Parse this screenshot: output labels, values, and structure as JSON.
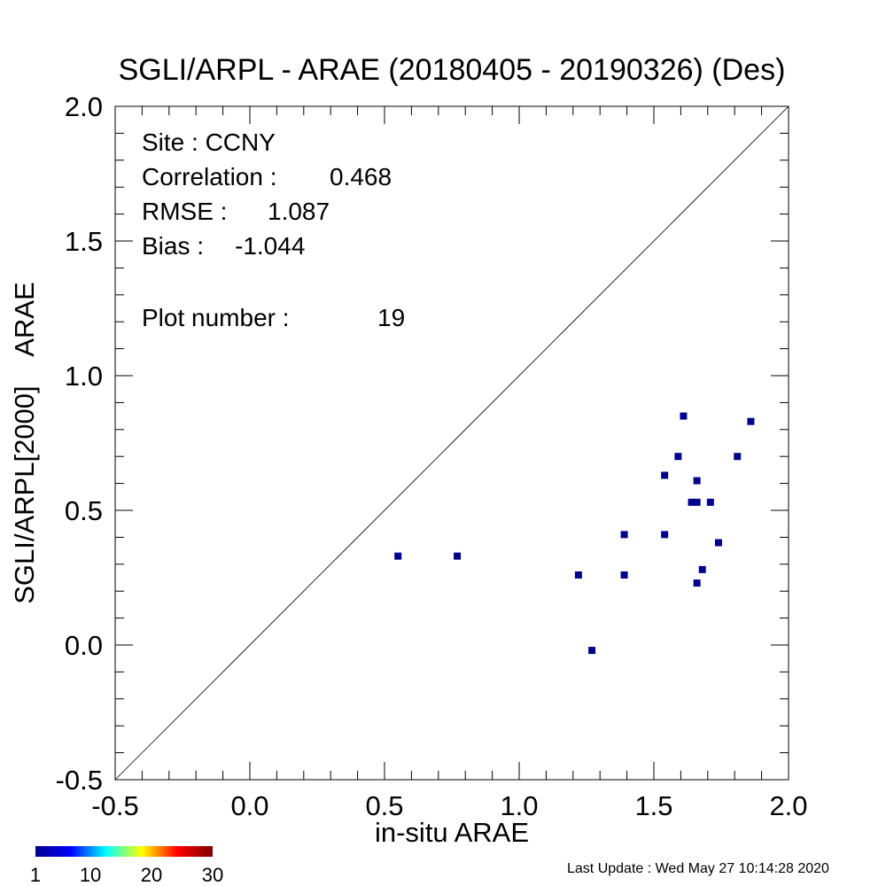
{
  "chart_data": {
    "type": "scatter",
    "title": "SGLI/ARPL - ARAE (20180405 - 20190326) (Des)",
    "xlabel": "in-situ ARAE",
    "ylabel": "SGLI/ARPL[2000]    ARAE",
    "xlim": [
      -0.5,
      2.0
    ],
    "ylim": [
      -0.5,
      2.0
    ],
    "x_ticks": [
      -0.5,
      0.0,
      0.5,
      1.0,
      1.5,
      2.0
    ],
    "x_tick_labels": [
      "-0.5",
      "0.0",
      "0.5",
      "1.0",
      "1.5",
      "2.0"
    ],
    "y_ticks": [
      -0.5,
      0.0,
      0.5,
      1.0,
      1.5,
      2.0
    ],
    "y_tick_labels": [
      "-0.5",
      "0.0",
      "0.5",
      "1.0",
      "1.5",
      "2.0"
    ],
    "one_to_one_line": true,
    "grid": false,
    "marker_color": "#00008b",
    "points": [
      {
        "x": 0.55,
        "y": 0.33
      },
      {
        "x": 0.77,
        "y": 0.33
      },
      {
        "x": 1.22,
        "y": 0.26
      },
      {
        "x": 1.27,
        "y": -0.02
      },
      {
        "x": 1.39,
        "y": 0.41
      },
      {
        "x": 1.39,
        "y": 0.26
      },
      {
        "x": 1.54,
        "y": 0.63
      },
      {
        "x": 1.54,
        "y": 0.41
      },
      {
        "x": 1.59,
        "y": 0.7
      },
      {
        "x": 1.61,
        "y": 0.85
      },
      {
        "x": 1.64,
        "y": 0.53
      },
      {
        "x": 1.66,
        "y": 0.53
      },
      {
        "x": 1.66,
        "y": 0.61
      },
      {
        "x": 1.66,
        "y": 0.23
      },
      {
        "x": 1.68,
        "y": 0.28
      },
      {
        "x": 1.71,
        "y": 0.53
      },
      {
        "x": 1.74,
        "y": 0.38
      },
      {
        "x": 1.81,
        "y": 0.7
      },
      {
        "x": 1.86,
        "y": 0.83
      }
    ],
    "stats": [
      {
        "label": "Site : CCNY",
        "value": ""
      },
      {
        "label": "Correlation :",
        "value": "0.468"
      },
      {
        "label": "RMSE :",
        "value": "1.087"
      },
      {
        "label": "Bias :",
        "value": "-1.044"
      },
      {
        "label": "Plot number :",
        "value": "19"
      }
    ],
    "colorbar": {
      "tick_labels": [
        "1",
        "10",
        "20",
        "30"
      ],
      "tick_values": [
        1,
        10,
        20,
        30
      ],
      "range": [
        1,
        30
      ],
      "colors": [
        "#00008f",
        "#0000ff",
        "#00ffff",
        "#ffff00",
        "#ff0000",
        "#800000"
      ]
    }
  },
  "footer": {
    "last_update": "Last Update : Wed May 27 10:14:28 2020"
  }
}
